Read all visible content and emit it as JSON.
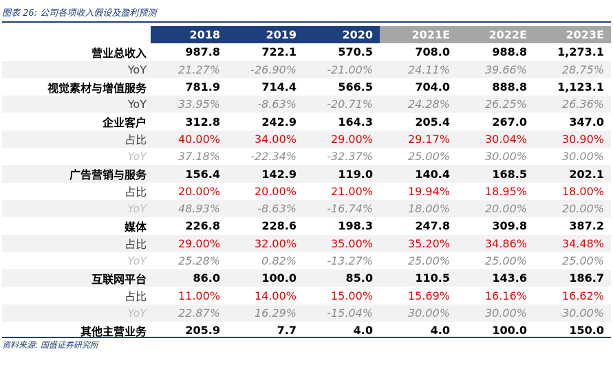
{
  "caption": "图表 26:  公司各项收入假设及盈利预测",
  "source": "资料来源:  国盛证券研究所",
  "header": [
    "",
    "2018",
    "2019",
    "2020",
    "2021E",
    "2022E",
    "2023E"
  ],
  "rows": [
    {
      "type": "main",
      "label": "营业总收入",
      "values": [
        "987.8",
        "722.1",
        "570.5",
        "708.0",
        "988.8",
        "1,273.1"
      ]
    },
    {
      "type": "yoy1",
      "label": "YoY",
      "values": [
        "21.27%",
        "-26.90%",
        "-21.00%",
        "24.11%",
        "39.66%",
        "28.75%"
      ]
    },
    {
      "type": "main",
      "label": "视觉素材与增值服务",
      "values": [
        "781.9",
        "714.4",
        "566.5",
        "704.0",
        "888.8",
        "1,123.1"
      ]
    },
    {
      "type": "yoy1",
      "label": "YoY",
      "values": [
        "33.95%",
        "-8.63%",
        "-20.71%",
        "24.28%",
        "26.25%",
        "26.36%"
      ]
    },
    {
      "type": "main",
      "label": "企业客户",
      "values": [
        "312.8",
        "242.9",
        "164.3",
        "205.4",
        "267.0",
        "347.0"
      ]
    },
    {
      "type": "share",
      "label": "占比",
      "values": [
        "40.00%",
        "34.00%",
        "29.00%",
        "29.17%",
        "30.04%",
        "30.90%"
      ]
    },
    {
      "type": "yoy2",
      "label": "YoY",
      "values": [
        "37.18%",
        "-22.34%",
        "-32.37%",
        "25.00%",
        "30.00%",
        "30.00%"
      ]
    },
    {
      "type": "main",
      "label": "广告营销与服务",
      "values": [
        "156.4",
        "142.9",
        "119.0",
        "140.4",
        "168.5",
        "202.1"
      ]
    },
    {
      "type": "share",
      "label": "占比",
      "values": [
        "20.00%",
        "20.00%",
        "21.00%",
        "19.94%",
        "18.95%",
        "18.00%"
      ]
    },
    {
      "type": "yoy2",
      "label": "YoY",
      "values": [
        "48.93%",
        "-8.63%",
        "-16.74%",
        "18.00%",
        "20.00%",
        "20.00%"
      ]
    },
    {
      "type": "main",
      "label": "媒体",
      "values": [
        "226.8",
        "228.6",
        "198.3",
        "247.8",
        "309.8",
        "387.2"
      ]
    },
    {
      "type": "share",
      "label": "占比",
      "values": [
        "29.00%",
        "32.00%",
        "35.00%",
        "35.20%",
        "34.86%",
        "34.48%"
      ]
    },
    {
      "type": "yoy2",
      "label": "YoY",
      "values": [
        "25.28%",
        "0.82%",
        "-13.27%",
        "25.00%",
        "25.00%",
        "25.00%"
      ]
    },
    {
      "type": "main",
      "label": "互联网平台",
      "values": [
        "86.0",
        "100.0",
        "85.0",
        "110.5",
        "143.6",
        "186.7"
      ]
    },
    {
      "type": "share",
      "label": "占比",
      "values": [
        "11.00%",
        "14.00%",
        "15.00%",
        "15.69%",
        "16.16%",
        "16.62%"
      ]
    },
    {
      "type": "yoy2",
      "label": "YoY",
      "values": [
        "22.87%",
        "16.29%",
        "-15.04%",
        "30.00%",
        "30.00%",
        "30.00%"
      ]
    },
    {
      "type": "main",
      "label": "其他主营业务",
      "values": [
        "205.9",
        "7.7",
        "4.0",
        "4.0",
        "100.0",
        "150.0"
      ]
    }
  ]
}
